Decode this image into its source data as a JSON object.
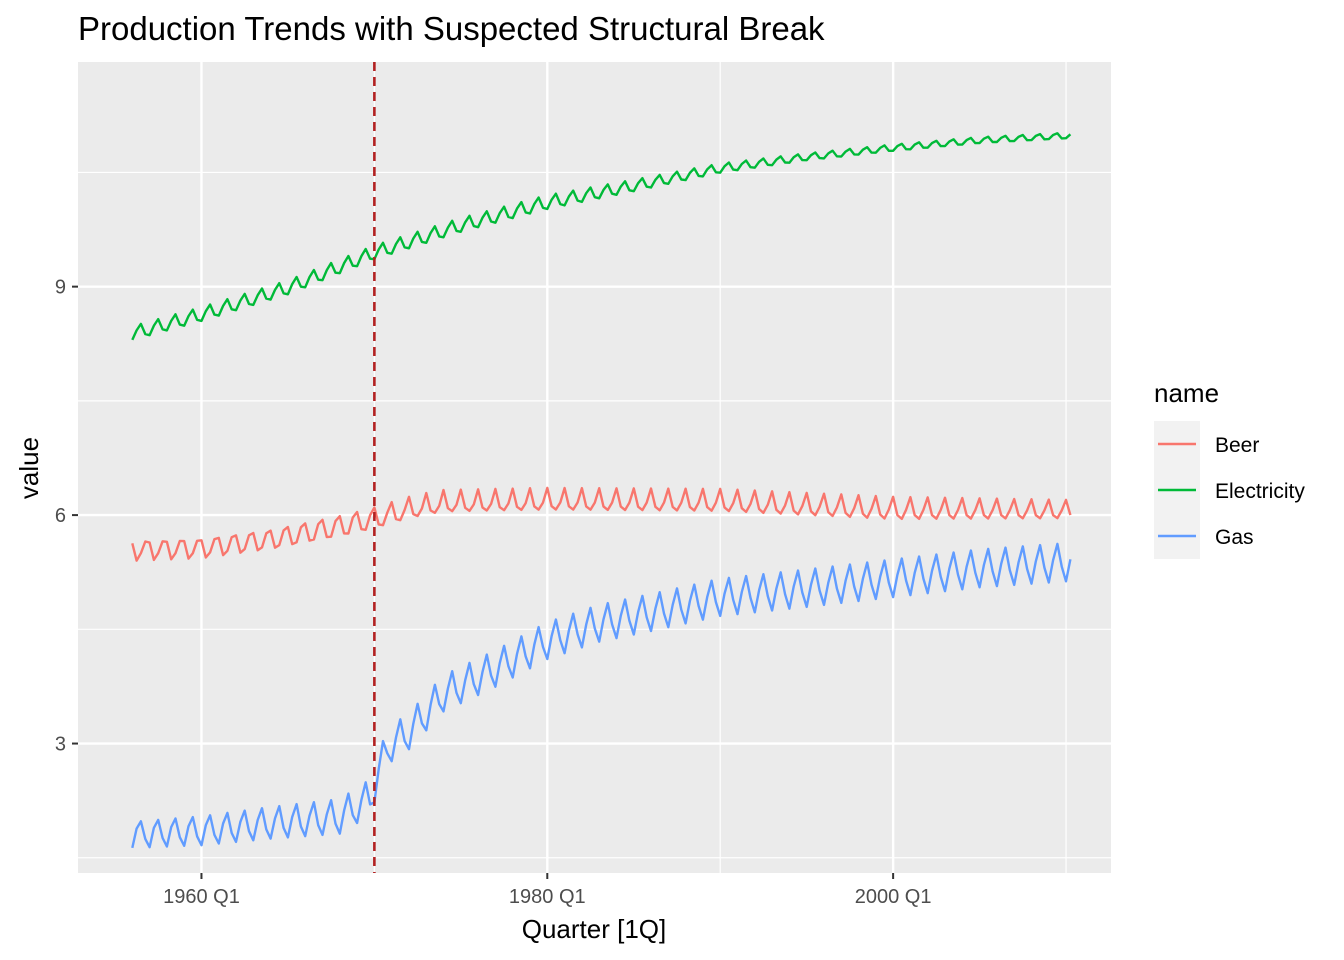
{
  "chart_data": {
    "type": "line",
    "title": "Production Trends with Suspected Structural Break",
    "xlabel": "Quarter [1Q]",
    "ylabel": "value",
    "x_ticks": [
      {
        "x": 1960,
        "label": "1960 Q1"
      },
      {
        "x": 1980,
        "label": "1980 Q1"
      },
      {
        "x": 2000,
        "label": "2000 Q1"
      }
    ],
    "y_ticks": [
      {
        "y": 3,
        "label": "3"
      },
      {
        "y": 6,
        "label": "6"
      },
      {
        "y": 9,
        "label": "9"
      }
    ],
    "xlim": [
      1952.86,
      2012.6
    ],
    "ylim": [
      1.3,
      11.95
    ],
    "grid": true,
    "break_line": {
      "x": 1970.0,
      "color": "#b22222",
      "style": "dashed"
    },
    "legend": {
      "title": "name",
      "position": "right"
    },
    "series": [
      {
        "name": "Beer",
        "color": "#F8766D",
        "base_points": [
          [
            1956,
            5.55
          ],
          [
            1960,
            5.57
          ],
          [
            1964,
            5.68
          ],
          [
            1968,
            5.85
          ],
          [
            1970,
            5.95
          ],
          [
            1972,
            6.07
          ],
          [
            1974,
            6.15
          ],
          [
            1980,
            6.18
          ],
          [
            1990,
            6.17
          ],
          [
            2000,
            6.07
          ],
          [
            2010,
            6.06
          ]
        ],
        "seasonal": [
          [
            1956,
            [
              0.08,
              -0.15,
              -0.05,
              0.1
            ]
          ],
          [
            1969,
            [
              0.14,
              -0.1,
              -0.12,
              0.08
            ]
          ],
          [
            1973,
            [
              0.18,
              -0.06,
              -0.1,
              -0.02
            ]
          ],
          [
            2000,
            [
              0.17,
              -0.07,
              -0.12,
              0.0
            ]
          ],
          [
            2010,
            [
              0.14,
              -0.06,
              -0.1,
              0.0
            ]
          ]
        ]
      },
      {
        "name": "Electricity",
        "color": "#00BA38",
        "base_points": [
          [
            1956,
            8.38
          ],
          [
            1960,
            8.63
          ],
          [
            1965,
            8.98
          ],
          [
            1970,
            9.44
          ],
          [
            1975,
            9.8
          ],
          [
            1980,
            10.1
          ],
          [
            1985,
            10.32
          ],
          [
            1990,
            10.55
          ],
          [
            1995,
            10.7
          ],
          [
            2000,
            10.82
          ],
          [
            2005,
            10.92
          ],
          [
            2010,
            10.98
          ]
        ],
        "seasonal": [
          [
            1956,
            [
              -0.08,
              0.03,
              0.1,
              -0.05
            ]
          ],
          [
            1980,
            [
              -0.08,
              0.03,
              0.1,
              -0.05
            ]
          ],
          [
            1995,
            [
              -0.04,
              0.02,
              0.05,
              -0.03
            ]
          ],
          [
            2010,
            [
              -0.03,
              0.02,
              0.04,
              -0.03
            ]
          ]
        ]
      },
      {
        "name": "Gas",
        "color": "#619CFF",
        "base_points": [
          [
            1956,
            1.8
          ],
          [
            1960,
            1.85
          ],
          [
            1964,
            1.95
          ],
          [
            1968,
            2.03
          ],
          [
            1969.75,
            2.28
          ],
          [
            1970.75,
            2.95
          ],
          [
            1972,
            3.15
          ],
          [
            1974,
            3.65
          ],
          [
            1977,
            3.98
          ],
          [
            1980,
            4.35
          ],
          [
            1983,
            4.58
          ],
          [
            1986,
            4.72
          ],
          [
            1990,
            4.92
          ],
          [
            1995,
            5.04
          ],
          [
            2000,
            5.17
          ],
          [
            2005,
            5.3
          ],
          [
            2010,
            5.38
          ]
        ],
        "seasonal": [
          [
            1956,
            [
              -0.17,
              0.08,
              0.17,
              -0.06
            ]
          ],
          [
            1970,
            [
              -0.22,
              0.05,
              0.25,
              -0.08
            ]
          ],
          [
            1980,
            [
              -0.24,
              0.04,
              0.24,
              -0.05
            ]
          ],
          [
            2010,
            [
              -0.25,
              0.04,
              0.25,
              -0.05
            ]
          ]
        ]
      }
    ]
  }
}
